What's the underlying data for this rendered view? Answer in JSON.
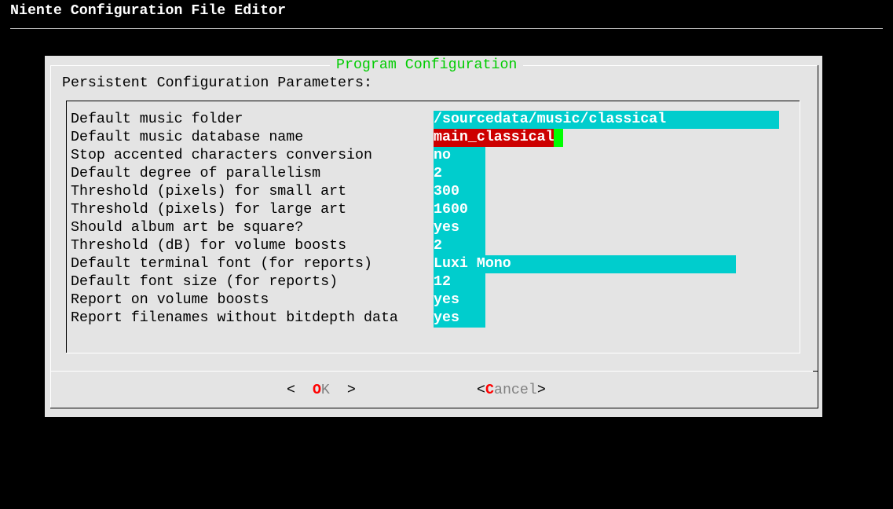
{
  "app_title": "Niente Configuration File Editor",
  "dialog": {
    "title": "Program Configuration",
    "subtitle": "Persistent Configuration Parameters:",
    "fields": [
      {
        "label": "Default music folder",
        "value": "/sourcedata/music/classical"
      },
      {
        "label": "Default music database name",
        "value": "main_classical",
        "active": true
      },
      {
        "label": "Stop accented characters conversion",
        "value": "no"
      },
      {
        "label": "Default degree of parallelism",
        "value": "2"
      },
      {
        "label": "Threshold (pixels) for small art",
        "value": "300"
      },
      {
        "label": "Threshold (pixels) for large art",
        "value": "1600"
      },
      {
        "label": "Should album art be square?",
        "value": "yes"
      },
      {
        "label": "Threshold (dB) for volume boosts",
        "value": "2"
      },
      {
        "label": "Default terminal font (for reports)",
        "value": "Luxi Mono"
      },
      {
        "label": "Default font size (for reports)",
        "value": "12"
      },
      {
        "label": "Report on volume boosts",
        "value": "yes"
      },
      {
        "label": "Report filenames without bitdepth data",
        "value": "yes"
      }
    ],
    "buttons": {
      "ok": {
        "open": "<",
        "hotkey": "O",
        "rest": "K",
        "close": ">"
      },
      "cancel": {
        "open": "<",
        "hotkey": "C",
        "rest": "ancel",
        "close": ">"
      }
    }
  },
  "colors": {
    "field_bg": "#00cdcd",
    "active_field_bg": "#cd0000",
    "cursor": "#00ff00",
    "title": "#00cc00",
    "hotkey": "#ff0000"
  }
}
